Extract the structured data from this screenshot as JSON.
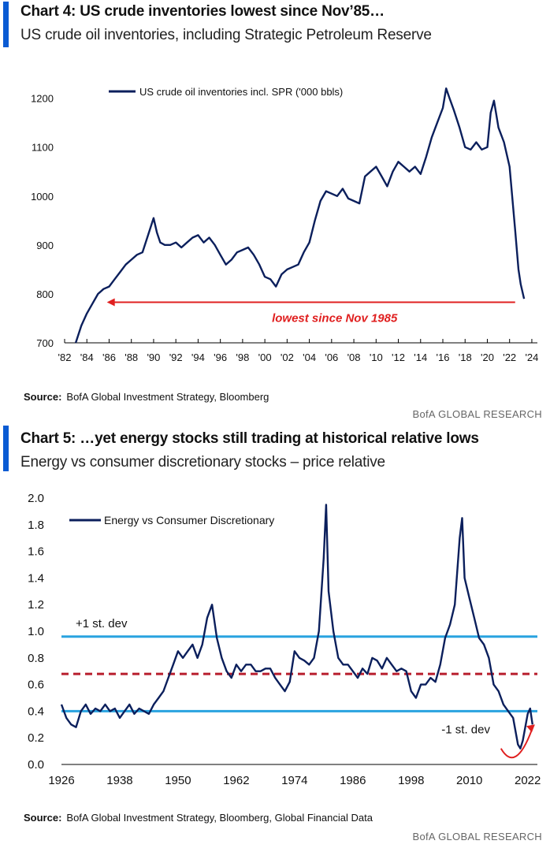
{
  "chart1": {
    "title": "Chart 4: US crude inventories lowest since Nov’85…",
    "subtitle": "US crude oil inventories, including Strategic Petroleum Reserve",
    "source_label": "Source:",
    "source_text": "BofA Global Investment Strategy, Bloomberg",
    "brand": "BofA GLOBAL RESEARCH"
  },
  "chart2": {
    "title": "Chart 5: …yet energy stocks still trading at historical relative lows",
    "subtitle": "Energy vs consumer discretionary stocks – price relative",
    "source_label": "Source:",
    "source_text": "BofA Global Investment Strategy, Bloomberg, Global Financial Data",
    "brand": "BofA GLOBAL RESEARCH"
  },
  "chart_data": [
    {
      "type": "line",
      "x_ticks": [
        "'82",
        "'84",
        "'86",
        "'88",
        "'90",
        "'92",
        "'94",
        "'96",
        "'98",
        "'00",
        "'02",
        "'04",
        "'06",
        "'08",
        "'10",
        "'12",
        "'14",
        "'16",
        "'18",
        "'20",
        "'22",
        "'24"
      ],
      "y_ticks": [
        700,
        800,
        900,
        1000,
        1100,
        1200
      ],
      "xlim": [
        1982,
        2024.5
      ],
      "ylim": [
        700,
        1230
      ],
      "grid": false,
      "legend_position": "top-left",
      "line_color": "#0b1f5c",
      "series": [
        {
          "name": "US crude oil inventories incl. SPR ('000 bbls)",
          "x": [
            1983.0,
            1983.5,
            1984.0,
            1984.5,
            1985.0,
            1985.5,
            1986.0,
            1986.5,
            1987.0,
            1987.5,
            1988.0,
            1988.5,
            1989.0,
            1989.5,
            1990.0,
            1990.3,
            1990.6,
            1991.0,
            1991.5,
            1992.0,
            1992.5,
            1993.0,
            1993.5,
            1994.0,
            1994.5,
            1995.0,
            1995.5,
            1996.0,
            1996.5,
            1997.0,
            1997.5,
            1998.0,
            1998.5,
            1999.0,
            1999.5,
            2000.0,
            2000.5,
            2001.0,
            2001.5,
            2002.0,
            2002.5,
            2003.0,
            2003.5,
            2004.0,
            2004.5,
            2005.0,
            2005.5,
            2006.0,
            2006.5,
            2007.0,
            2007.5,
            2008.0,
            2008.5,
            2009.0,
            2009.5,
            2010.0,
            2010.5,
            2011.0,
            2011.5,
            2012.0,
            2012.5,
            2013.0,
            2013.5,
            2014.0,
            2014.5,
            2015.0,
            2015.5,
            2016.0,
            2016.3,
            2016.6,
            2017.0,
            2017.5,
            2018.0,
            2018.5,
            2019.0,
            2019.5,
            2020.0,
            2020.3,
            2020.6,
            2021.0,
            2021.5,
            2022.0,
            2022.5,
            2022.8,
            2023.0,
            2023.3
          ],
          "values": [
            700,
            735,
            760,
            780,
            800,
            810,
            815,
            830,
            845,
            860,
            870,
            880,
            885,
            920,
            955,
            925,
            905,
            900,
            900,
            905,
            895,
            905,
            915,
            920,
            905,
            915,
            900,
            880,
            860,
            870,
            885,
            890,
            895,
            880,
            860,
            835,
            830,
            815,
            840,
            850,
            855,
            860,
            885,
            905,
            950,
            990,
            1010,
            1005,
            1000,
            1015,
            995,
            990,
            985,
            1040,
            1050,
            1060,
            1040,
            1020,
            1050,
            1070,
            1060,
            1050,
            1060,
            1045,
            1080,
            1120,
            1150,
            1180,
            1220,
            1200,
            1175,
            1140,
            1100,
            1095,
            1110,
            1095,
            1100,
            1170,
            1195,
            1140,
            1110,
            1060,
            930,
            850,
            820,
            790
          ]
        }
      ],
      "annotation": {
        "text": "lowest since Nov 1985",
        "value": 783,
        "x_start": 1985.8,
        "x_end": 2022.5,
        "color": "#e02020"
      }
    },
    {
      "type": "line",
      "x_ticks": [
        "1926",
        "1938",
        "1950",
        "1962",
        "1974",
        "1986",
        "1998",
        "2010",
        "2022"
      ],
      "y_ticks": [
        "0.0",
        "0.2",
        "0.4",
        "0.6",
        "0.8",
        "1.0",
        "1.2",
        "1.4",
        "1.6",
        "1.8",
        "2.0"
      ],
      "xlim": [
        1926,
        2024
      ],
      "ylim": [
        0,
        2.0
      ],
      "grid": false,
      "legend_position": "top-left",
      "line_color": "#0b1f5c",
      "series": [
        {
          "name": "Energy vs Consumer Discretionary",
          "x": [
            1926,
            1927,
            1928,
            1929,
            1930,
            1931,
            1932,
            1933,
            1934,
            1935,
            1936,
            1937,
            1938,
            1939,
            1940,
            1941,
            1942,
            1943,
            1944,
            1945,
            1946,
            1947,
            1948,
            1949,
            1950,
            1951,
            1952,
            1953,
            1954,
            1955,
            1956,
            1957,
            1958,
            1959,
            1960,
            1961,
            1962,
            1963,
            1964,
            1965,
            1966,
            1967,
            1968,
            1969,
            1970,
            1971,
            1972,
            1973,
            1974,
            1975,
            1976,
            1977,
            1978,
            1979,
            1980,
            1980.5,
            1981,
            1982,
            1983,
            1984,
            1985,
            1986,
            1987,
            1988,
            1989,
            1990,
            1991,
            1992,
            1993,
            1994,
            1995,
            1996,
            1997,
            1998,
            1999,
            2000,
            2001,
            2002,
            2003,
            2004,
            2005,
            2006,
            2007,
            2008,
            2008.5,
            2009,
            2010,
            2011,
            2012,
            2013,
            2014,
            2015,
            2016,
            2017,
            2018,
            2019,
            2020,
            2020.5,
            2021,
            2022,
            2022.5,
            2023
          ],
          "values": [
            0.45,
            0.35,
            0.3,
            0.28,
            0.4,
            0.45,
            0.38,
            0.42,
            0.4,
            0.45,
            0.4,
            0.42,
            0.35,
            0.4,
            0.45,
            0.38,
            0.42,
            0.4,
            0.38,
            0.45,
            0.5,
            0.55,
            0.65,
            0.75,
            0.85,
            0.8,
            0.85,
            0.9,
            0.8,
            0.9,
            1.1,
            1.2,
            0.95,
            0.8,
            0.7,
            0.65,
            0.75,
            0.7,
            0.75,
            0.75,
            0.7,
            0.7,
            0.72,
            0.72,
            0.65,
            0.6,
            0.55,
            0.62,
            0.85,
            0.8,
            0.78,
            0.75,
            0.8,
            1.0,
            1.55,
            1.95,
            1.3,
            1.0,
            0.8,
            0.75,
            0.75,
            0.7,
            0.65,
            0.72,
            0.68,
            0.8,
            0.78,
            0.72,
            0.8,
            0.75,
            0.7,
            0.72,
            0.7,
            0.55,
            0.5,
            0.6,
            0.6,
            0.65,
            0.62,
            0.75,
            0.95,
            1.05,
            1.2,
            1.7,
            1.85,
            1.4,
            1.25,
            1.1,
            0.95,
            0.9,
            0.8,
            0.6,
            0.55,
            0.45,
            0.4,
            0.35,
            0.15,
            0.12,
            0.18,
            0.38,
            0.42,
            0.3
          ]
        }
      ],
      "reference_lines": [
        {
          "label": "+1 st. dev",
          "value": 0.96,
          "color": "#29a3e0",
          "style": "solid"
        },
        {
          "label": "",
          "value": 0.68,
          "color": "#b81e2d",
          "style": "dashed"
        },
        {
          "label": "-1 st. dev",
          "value": 0.4,
          "color": "#29a3e0",
          "style": "solid"
        }
      ],
      "annotation_color": "#e02020"
    }
  ]
}
